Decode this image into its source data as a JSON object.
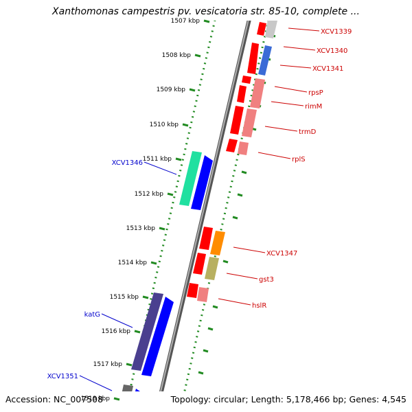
{
  "title": "Xanthomonas campestris pv. vesicatoria str. 85-10, complete ...",
  "accession": "Accession: NC_007508",
  "summary": "Topology: circular; Length: 5,178,466 bp; Genes: 4,545",
  "ticks": [
    {
      "label": "1507 kbp",
      "kb": 1507
    },
    {
      "label": "1508 kbp",
      "kb": 1508
    },
    {
      "label": "1509 kbp",
      "kb": 1509
    },
    {
      "label": "1510 kbp",
      "kb": 1510
    },
    {
      "label": "1511 kbp",
      "kb": 1511
    },
    {
      "label": "1512 kbp",
      "kb": 1512
    },
    {
      "label": "1513 kbp",
      "kb": 1513
    },
    {
      "label": "1514 kbp",
      "kb": 1514
    },
    {
      "label": "1515 kbp",
      "kb": 1515
    },
    {
      "label": "1516 kbp",
      "kb": 1516
    },
    {
      "label": "1517 kbp",
      "kb": 1517
    },
    {
      "label": "1518 kbp",
      "kb": 1518
    }
  ],
  "genes": [
    {
      "name": "XCV1339",
      "strand": "forward",
      "color": "#cc0000"
    },
    {
      "name": "XCV1340",
      "strand": "forward",
      "color": "#cc0000"
    },
    {
      "name": "XCV1341",
      "strand": "forward",
      "color": "#cc0000"
    },
    {
      "name": "rpsP",
      "strand": "forward",
      "color": "#cc0000"
    },
    {
      "name": "rimM",
      "strand": "forward",
      "color": "#cc0000"
    },
    {
      "name": "trmD",
      "strand": "forward",
      "color": "#cc0000"
    },
    {
      "name": "rplS",
      "strand": "forward",
      "color": "#cc0000"
    },
    {
      "name": "XCV1347",
      "strand": "forward",
      "color": "#cc0000"
    },
    {
      "name": "gst3",
      "strand": "forward",
      "color": "#cc0000"
    },
    {
      "name": "hslR",
      "strand": "forward",
      "color": "#cc0000"
    },
    {
      "name": "XCV1346",
      "strand": "reverse",
      "color": "#0000cc"
    },
    {
      "name": "katG",
      "strand": "reverse",
      "color": "#0000cc"
    },
    {
      "name": "XCV1351",
      "strand": "reverse",
      "color": "#0000cc"
    }
  ],
  "colors": {
    "dotted_ring": "#228b22",
    "tick": "#228b22",
    "backbone": "#808080",
    "forward_cds": "#ff0000",
    "reverse_cds": "#0000ff"
  }
}
